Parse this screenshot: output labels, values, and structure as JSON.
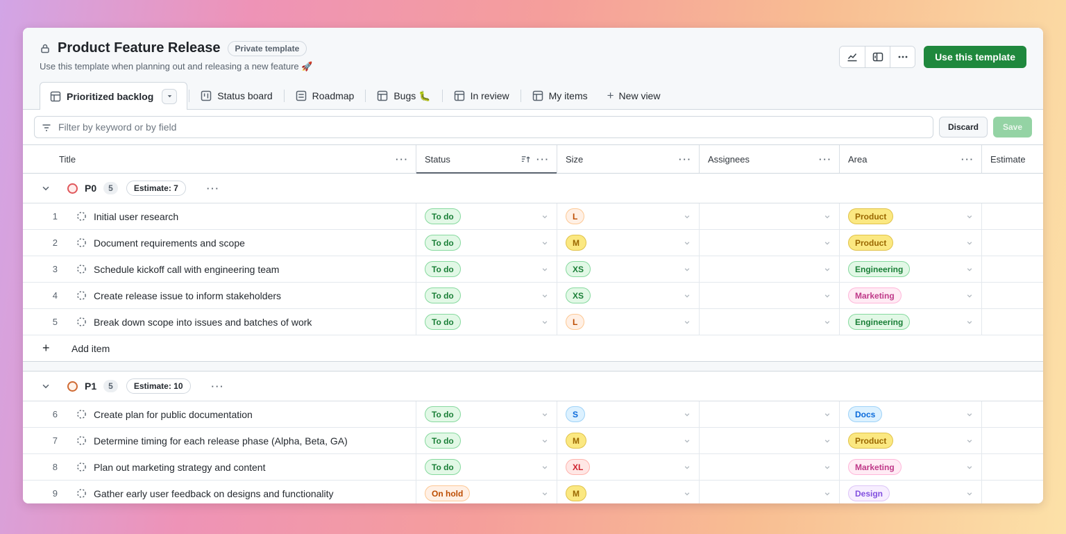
{
  "header": {
    "title": "Product Feature Release",
    "badge": "Private template",
    "description": "Use this template when planning out and releasing a new feature 🚀",
    "use_template_label": "Use this template",
    "accent_green": "#1f883d"
  },
  "toolbar_icons": [
    "insights-chart-icon",
    "side-panel-icon",
    "kebab-menu-icon"
  ],
  "tabs": [
    {
      "label": "Prioritized backlog",
      "icon": "table-icon",
      "active": true
    },
    {
      "label": "Status board",
      "icon": "board-icon",
      "active": false
    },
    {
      "label": "Roadmap",
      "icon": "rows-icon",
      "active": false
    },
    {
      "label": "Bugs 🐛",
      "icon": "table-icon",
      "active": false
    },
    {
      "label": "In review",
      "icon": "table-icon",
      "active": false
    },
    {
      "label": "My items",
      "icon": "table-icon",
      "active": false
    }
  ],
  "new_view_label": "New view",
  "filter": {
    "placeholder": "Filter by keyword or by field",
    "discard_label": "Discard",
    "save_label": "Save"
  },
  "table": {
    "columns": [
      "Title",
      "Status",
      "Size",
      "Assignees",
      "Area",
      "Estimate"
    ],
    "sorted_column": "Status"
  },
  "add_item_label": "Add item",
  "groups": [
    {
      "name": "P0",
      "count": "5",
      "estimate": "Estimate: 7",
      "ring_color": "#e0575b",
      "ring_bg": "#ffeceb",
      "show_add_item": true,
      "rows": [
        {
          "num": "1",
          "title": "Initial user research",
          "status": {
            "label": "To do",
            "variant": "green"
          },
          "size": {
            "label": "L",
            "variant": "orange"
          },
          "area": {
            "label": "Product",
            "variant": "yellow"
          }
        },
        {
          "num": "2",
          "title": "Document requirements and scope",
          "status": {
            "label": "To do",
            "variant": "green"
          },
          "size": {
            "label": "M",
            "variant": "yellow"
          },
          "area": {
            "label": "Product",
            "variant": "yellow"
          }
        },
        {
          "num": "3",
          "title": "Schedule kickoff call with engineering team",
          "status": {
            "label": "To do",
            "variant": "green"
          },
          "size": {
            "label": "XS",
            "variant": "green"
          },
          "area": {
            "label": "Engineering",
            "variant": "green"
          }
        },
        {
          "num": "4",
          "title": "Create release issue to inform stakeholders",
          "status": {
            "label": "To do",
            "variant": "green"
          },
          "size": {
            "label": "XS",
            "variant": "green"
          },
          "area": {
            "label": "Marketing",
            "variant": "pink"
          }
        },
        {
          "num": "5",
          "title": "Break down scope into issues and batches of work",
          "status": {
            "label": "To do",
            "variant": "green"
          },
          "size": {
            "label": "L",
            "variant": "orange"
          },
          "area": {
            "label": "Engineering",
            "variant": "green"
          }
        }
      ]
    },
    {
      "name": "P1",
      "count": "5",
      "estimate": "Estimate: 10",
      "ring_color": "#cf6a33",
      "ring_bg": "#fff3ea",
      "show_add_item": false,
      "rows": [
        {
          "num": "6",
          "title": "Create plan for public documentation",
          "status": {
            "label": "To do",
            "variant": "green"
          },
          "size": {
            "label": "S",
            "variant": "blue"
          },
          "area": {
            "label": "Docs",
            "variant": "blue"
          }
        },
        {
          "num": "7",
          "title": "Determine timing for each release phase (Alpha, Beta, GA)",
          "status": {
            "label": "To do",
            "variant": "green"
          },
          "size": {
            "label": "M",
            "variant": "yellow"
          },
          "area": {
            "label": "Product",
            "variant": "yellow"
          }
        },
        {
          "num": "8",
          "title": "Plan out marketing strategy and content",
          "status": {
            "label": "To do",
            "variant": "green"
          },
          "size": {
            "label": "XL",
            "variant": "red"
          },
          "area": {
            "label": "Marketing",
            "variant": "pink"
          }
        },
        {
          "num": "9",
          "title": "Gather early user feedback on designs and functionality",
          "status": {
            "label": "On hold",
            "variant": "orange"
          },
          "size": {
            "label": "M",
            "variant": "yellow"
          },
          "area": {
            "label": "Design",
            "variant": "purple"
          }
        }
      ]
    }
  ]
}
